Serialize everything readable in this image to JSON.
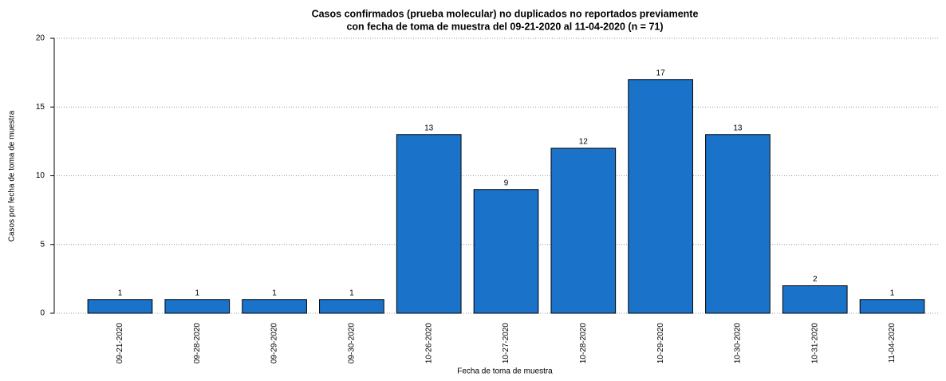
{
  "chart_data": {
    "type": "bar",
    "title": [
      "Casos confirmados (prueba molecular) no duplicados no reportados previamente",
      "con fecha de toma de muestra del 09-21-2020 al 11-04-2020 (n = 71)"
    ],
    "x_label": "Fecha de toma de muestra",
    "y_label": "Casos por fecha de toma de muestra",
    "categories": [
      "09-21-2020",
      "09-28-2020",
      "09-29-2020",
      "09-30-2020",
      "10-26-2020",
      "10-27-2020",
      "10-28-2020",
      "10-29-2020",
      "10-30-2020",
      "10-31-2020",
      "11-04-2020"
    ],
    "values": [
      1,
      1,
      1,
      1,
      13,
      9,
      12,
      17,
      13,
      2,
      1
    ],
    "color": "#1a73c9",
    "ylim": [
      0,
      20
    ],
    "yticks": [
      0,
      5,
      10,
      15,
      20
    ],
    "grid": true
  }
}
